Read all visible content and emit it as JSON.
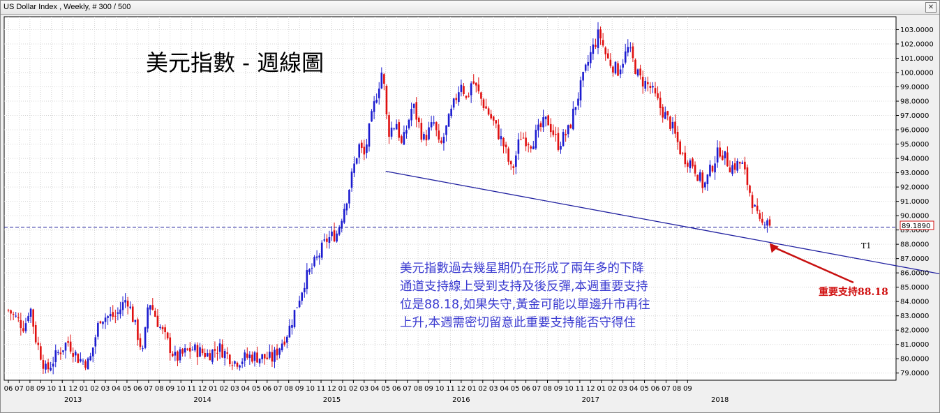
{
  "window": {
    "title": "US Dollar Index , Weekly, # 300 / 500",
    "close_glyph": "✕"
  },
  "chart_data": {
    "type": "candlestick",
    "title": "美元指數 - 週線圖",
    "ylim": [
      78.5,
      103.9
    ],
    "y_ticks": [
      "79.0000",
      "80.0000",
      "81.0000",
      "82.0000",
      "83.0000",
      "84.0000",
      "85.0000",
      "86.0000",
      "87.0000",
      "88.0000",
      "89.0000",
      "90.0000",
      "91.0000",
      "92.0000",
      "93.0000",
      "94.0000",
      "95.0000",
      "96.0000",
      "97.0000",
      "98.0000",
      "99.0000",
      "100.0000",
      "101.0000",
      "102.0000",
      "103.0000"
    ],
    "x_month_labels": [
      "06",
      "07",
      "08",
      "09",
      "10",
      "11",
      "12",
      "01",
      "02",
      "03",
      "04",
      "05",
      "06",
      "07",
      "08",
      "09",
      "10",
      "11",
      "12",
      "01",
      "02",
      "03",
      "04",
      "05",
      "06",
      "07",
      "08",
      "09",
      "10",
      "11",
      "12",
      "01",
      "02",
      "03",
      "04",
      "05",
      "06",
      "07",
      "08",
      "09",
      "10",
      "11",
      "12",
      "01",
      "02",
      "03",
      "04",
      "05",
      "06",
      "07",
      "08",
      "09",
      "10",
      "11",
      "12",
      "01",
      "02",
      "03",
      "04",
      "05",
      "06",
      "07",
      "08",
      "09"
    ],
    "x_year_labels": [
      {
        "text": "2013",
        "month_index": 6
      },
      {
        "text": "2014",
        "month_index": 18
      },
      {
        "text": "2015",
        "month_index": 30
      },
      {
        "text": "2016",
        "month_index": 42
      },
      {
        "text": "2017",
        "month_index": 54
      },
      {
        "text": "2018",
        "month_index": 66
      }
    ],
    "current_price": "89.1890",
    "current_value": 89.189,
    "trendline": {
      "label": "T1",
      "start": {
        "month_index": 35.0,
        "value": 93.1
      },
      "end": {
        "month_index": 70.5,
        "value": 88.15
      }
    },
    "annotation_text": "美元指數過去幾星期仍在形成了兩年多的下降 通道支持線上受到支持及後反彈,本週重要支持 位是88.18,如果失守,黃金可能以單邊升市再往 上升,本週需密切留意此重要支持能否守得住",
    "annotation_lines": [
      "美元指數過去幾星期仍在形成了兩年多的下降",
      "通道支持線上受到支持及後反彈,本週重要支持",
      "位是88.18,如果失守,黃金可能以單邊升市再往",
      "上升,本週需密切留意此重要支持能否守得住"
    ],
    "support_label": "重要支持88.18",
    "support_value": 88.18,
    "colors": {
      "up": "#1c1cd0",
      "down": "#e01010",
      "trendline": "#2020a0",
      "price_line": "#1c1c9c",
      "annotation": "#3a3ad0",
      "support_label": "#d01010",
      "arrow": "#c81010",
      "grid": "#d4d4d4"
    },
    "anchors": [
      [
        0.0,
        83.4
      ],
      [
        1.5,
        82.2
      ],
      [
        2.0,
        83.8
      ],
      [
        2.5,
        81.5
      ],
      [
        3.5,
        79.1
      ],
      [
        4.5,
        80.3
      ],
      [
        5.5,
        81.2
      ],
      [
        6.5,
        80.0
      ],
      [
        7.5,
        79.7
      ],
      [
        8.5,
        82.9
      ],
      [
        10.0,
        83.0
      ],
      [
        11.0,
        84.3
      ],
      [
        12.5,
        80.3
      ],
      [
        13.0,
        84.2
      ],
      [
        14.0,
        82.3
      ],
      [
        15.5,
        80.0
      ],
      [
        17.0,
        80.7
      ],
      [
        18.5,
        80.3
      ],
      [
        19.5,
        80.8
      ],
      [
        21.0,
        79.8
      ],
      [
        22.5,
        80.2
      ],
      [
        24.5,
        80.0
      ],
      [
        26.0,
        82.0
      ],
      [
        27.5,
        85.5
      ],
      [
        28.5,
        86.8
      ],
      [
        29.5,
        88.3
      ],
      [
        30.5,
        88.8
      ],
      [
        31.5,
        91.6
      ],
      [
        32.5,
        94.9
      ],
      [
        33.0,
        94.2
      ],
      [
        34.0,
        98.0
      ],
      [
        34.7,
        100.3
      ],
      [
        35.2,
        95.8
      ],
      [
        36.0,
        96.5
      ],
      [
        36.5,
        94.8
      ],
      [
        37.5,
        97.8
      ],
      [
        38.5,
        95.3
      ],
      [
        39.5,
        96.5
      ],
      [
        40.0,
        94.6
      ],
      [
        41.0,
        97.0
      ],
      [
        42.0,
        99.4
      ],
      [
        42.5,
        98.0
      ],
      [
        43.0,
        99.5
      ],
      [
        44.0,
        97.9
      ],
      [
        45.0,
        96.5
      ],
      [
        46.0,
        94.8
      ],
      [
        46.7,
        93.0
      ],
      [
        47.5,
        95.6
      ],
      [
        48.5,
        95.1
      ],
      [
        49.5,
        96.3
      ],
      [
        50.0,
        96.7
      ],
      [
        51.0,
        95.0
      ],
      [
        52.0,
        96.0
      ],
      [
        52.5,
        97.5
      ],
      [
        53.0,
        98.8
      ],
      [
        54.0,
        101.3
      ],
      [
        54.8,
        102.8
      ],
      [
        55.5,
        101.0
      ],
      [
        56.5,
        100.1
      ],
      [
        57.5,
        101.7
      ],
      [
        58.5,
        99.6
      ],
      [
        59.5,
        99.0
      ],
      [
        60.5,
        97.5
      ],
      [
        61.5,
        96.3
      ],
      [
        62.5,
        94.2
      ],
      [
        63.5,
        93.6
      ],
      [
        64.5,
        92.0
      ],
      [
        65.5,
        93.9
      ],
      [
        66.0,
        94.6
      ],
      [
        67.0,
        93.4
      ],
      [
        68.0,
        93.7
      ],
      [
        68.5,
        92.4
      ],
      [
        69.3,
        90.2
      ],
      [
        69.8,
        89.1
      ],
      [
        70.3,
        90.1
      ],
      [
        70.7,
        89.2
      ]
    ]
  }
}
